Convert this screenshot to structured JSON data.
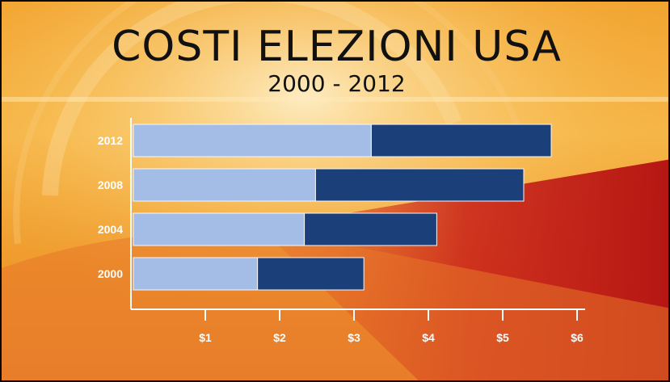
{
  "header": {
    "title": "COSTI ELEZIONI USA",
    "subtitle": "2000 - 2012"
  },
  "colors": {
    "series_light": "#a4bde6",
    "series_dark": "#1b3f78",
    "axis": "#ffffff",
    "background_orange": "#f2a430",
    "background_red": "#c8201a"
  },
  "chart_data": {
    "type": "bar",
    "orientation": "horizontal",
    "stacked": true,
    "categories": [
      "2012",
      "2008",
      "2004",
      "2000"
    ],
    "series": [
      {
        "values": [
          3.2,
          2.45,
          2.3,
          1.67
        ]
      },
      {
        "values": [
          2.42,
          2.8,
          1.78,
          1.43
        ]
      }
    ],
    "xticks": [
      1,
      2,
      3,
      4,
      5,
      6
    ],
    "xtick_labels": [
      "$1",
      "$2",
      "$3",
      "$4",
      "$5",
      "$6"
    ],
    "xlim": [
      0,
      6
    ],
    "grid": false,
    "legend": "none"
  }
}
